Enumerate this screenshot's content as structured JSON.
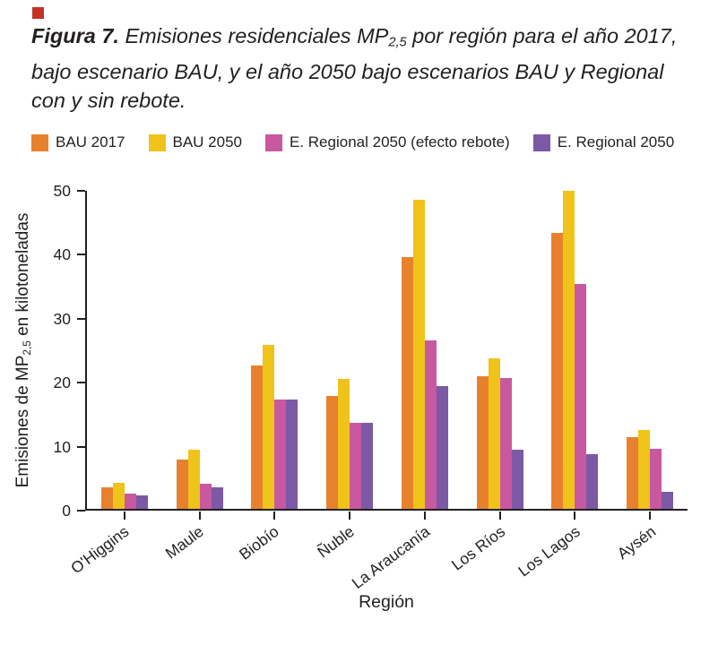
{
  "accent_square_color": "#C23128",
  "title": {
    "fig_label": "Figura 7.",
    "pre_sub": " Emisiones residenciales MP",
    "sub": "2,5",
    "post_sub": " por región para el año 2017, bajo escenario BAU, y el año 2050 bajo escenarios BAU y Regional con y sin rebote."
  },
  "legend": [
    {
      "label": "BAU 2017",
      "color": "#E8812D"
    },
    {
      "label": "BAU 2050",
      "color": "#EFC319"
    },
    {
      "label": "E. Regional 2050 (efecto rebote)",
      "color": "#C8589F"
    },
    {
      "label": "E. Regional 2050",
      "color": "#7B59A5"
    }
  ],
  "chart_data": {
    "type": "bar",
    "title": "Figura 7. Emisiones residenciales MP2,5 por región para el año 2017, bajo escenario BAU, y el año 2050 bajo escenarios BAU y Regional con y sin rebote.",
    "categories": [
      "O'Higgins",
      "Maule",
      "Biobío",
      "Ñuble",
      "La Araucanía",
      "Los Ríos",
      "Los Lagos",
      "Aysén"
    ],
    "series": [
      {
        "name": "BAU 2017",
        "color": "#E8812D",
        "values": [
          3.4,
          7.7,
          22.5,
          17.7,
          39.6,
          20.8,
          43.4,
          11.3
        ]
      },
      {
        "name": "BAU 2050",
        "color": "#EFC319",
        "values": [
          4.1,
          9.3,
          25.8,
          20.4,
          48.6,
          23.7,
          50.0,
          12.4
        ]
      },
      {
        "name": "E. Regional 2050 (efecto rebote)",
        "color": "#C8589F",
        "values": [
          2.4,
          3.9,
          17.2,
          13.5,
          26.5,
          20.5,
          35.3,
          9.4
        ]
      },
      {
        "name": "E. Regional 2050",
        "color": "#7B59A5",
        "values": [
          2.1,
          3.4,
          17.2,
          13.5,
          19.3,
          9.3,
          8.6,
          2.7
        ]
      }
    ],
    "xlabel": "Región",
    "ylabel_pre": "Emisiones de MP",
    "ylabel_sub": "2,5",
    "ylabel_post": " en kilotoneladas",
    "ylim": [
      0,
      50
    ],
    "yticks": [
      0,
      10,
      20,
      30,
      40,
      50
    ],
    "grid": false,
    "legend_position": "top"
  }
}
